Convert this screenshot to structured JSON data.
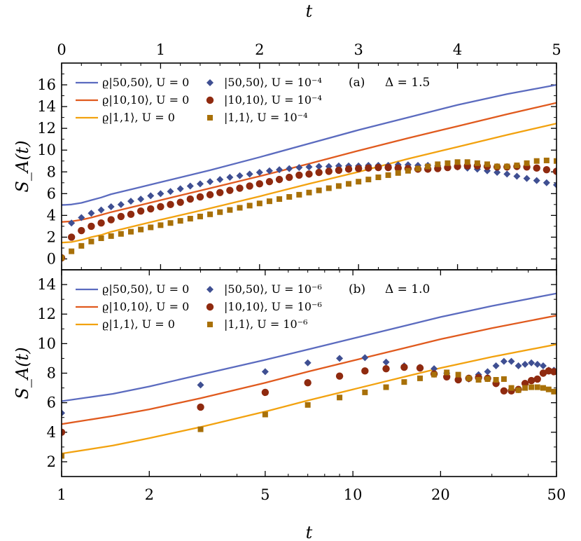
{
  "chart_data": [
    {
      "type": "line",
      "panel_label": "(a)",
      "parameter_label": "Δ = 1.5",
      "xlabel": "t",
      "ylabel": "S_A(t)",
      "xscale": "linear",
      "xlim": [
        0,
        5
      ],
      "ylim": [
        -1,
        18
      ],
      "xticks": [
        "0",
        "1",
        "2",
        "3",
        "4",
        "5"
      ],
      "yticks": [
        "0",
        "2",
        "4",
        "6",
        "8",
        "10",
        "12",
        "14",
        "16"
      ],
      "legend_position": "top-left",
      "series": [
        {
          "name": "ϱ|50,50⟩,  U = 0",
          "kind": "line",
          "color": "#5b6bbf",
          "x": [
            0,
            0.1,
            0.2,
            0.3,
            0.4,
            0.5,
            0.75,
            1,
            1.5,
            2,
            2.5,
            3,
            3.5,
            4,
            4.5,
            5
          ],
          "y": [
            4.95,
            5.0,
            5.15,
            5.4,
            5.65,
            5.95,
            6.5,
            7.05,
            8.15,
            9.35,
            10.6,
            11.85,
            13.0,
            14.15,
            15.15,
            16.0
          ]
        },
        {
          "name": "ϱ|10,10⟩,  U = 0",
          "kind": "line",
          "color": "#e05a1e",
          "x": [
            0,
            0.1,
            0.2,
            0.3,
            0.4,
            0.5,
            0.75,
            1,
            1.5,
            2,
            2.5,
            3,
            3.5,
            4,
            4.5,
            5
          ],
          "y": [
            3.4,
            3.45,
            3.6,
            3.8,
            4.05,
            4.3,
            4.85,
            5.4,
            6.5,
            7.6,
            8.75,
            9.95,
            11.1,
            12.2,
            13.3,
            14.35
          ]
        },
        {
          "name": "ϱ|1,1⟩,  U = 0",
          "kind": "line",
          "color": "#f2a20f",
          "x": [
            0,
            0.1,
            0.2,
            0.3,
            0.4,
            0.5,
            0.75,
            1,
            1.5,
            2,
            2.5,
            3,
            3.5,
            4,
            4.5,
            5
          ],
          "y": [
            1.5,
            1.55,
            1.75,
            2.0,
            2.2,
            2.5,
            3.05,
            3.6,
            4.65,
            5.75,
            6.9,
            8.0,
            9.2,
            10.3,
            11.4,
            12.45
          ]
        },
        {
          "name": "|50,50⟩,  U = 10⁻⁴",
          "kind": "marker",
          "marker": "diamond",
          "color": "#3f4f92",
          "x": [
            0.1,
            0.2,
            0.3,
            0.4,
            0.5,
            0.6,
            0.7,
            0.8,
            0.9,
            1.0,
            1.1,
            1.2,
            1.3,
            1.4,
            1.5,
            1.6,
            1.7,
            1.8,
            1.9,
            2.0,
            2.1,
            2.2,
            2.3,
            2.4,
            2.5,
            2.6,
            2.7,
            2.8,
            2.9,
            3.0,
            3.1,
            3.2,
            3.3,
            3.4,
            3.5,
            3.6,
            3.7,
            3.8,
            3.9,
            4.0,
            4.1,
            4.2,
            4.3,
            4.4,
            4.5,
            4.6,
            4.7,
            4.8,
            4.9,
            5.0
          ],
          "y": [
            3.3,
            3.8,
            4.2,
            4.5,
            4.8,
            5.0,
            5.3,
            5.5,
            5.8,
            6.0,
            6.2,
            6.45,
            6.7,
            6.9,
            7.1,
            7.3,
            7.5,
            7.65,
            7.8,
            7.95,
            8.1,
            8.2,
            8.3,
            8.4,
            8.45,
            8.5,
            8.5,
            8.55,
            8.55,
            8.55,
            8.6,
            8.6,
            8.6,
            8.65,
            8.65,
            8.6,
            8.6,
            8.55,
            8.5,
            8.45,
            8.35,
            8.25,
            8.1,
            7.95,
            7.8,
            7.6,
            7.4,
            7.2,
            7.0,
            6.8
          ]
        },
        {
          "name": "|10,10⟩,  U = 10⁻⁴",
          "kind": "marker",
          "marker": "circle",
          "color": "#8f2a0f",
          "x": [
            0,
            0.1,
            0.2,
            0.3,
            0.4,
            0.5,
            0.6,
            0.7,
            0.8,
            0.9,
            1.0,
            1.1,
            1.2,
            1.3,
            1.4,
            1.5,
            1.6,
            1.7,
            1.8,
            1.9,
            2.0,
            2.1,
            2.2,
            2.3,
            2.4,
            2.5,
            2.6,
            2.7,
            2.8,
            2.9,
            3.0,
            3.1,
            3.2,
            3.3,
            3.4,
            3.5,
            3.6,
            3.7,
            3.8,
            3.9,
            4.0,
            4.1,
            4.2,
            4.3,
            4.4,
            4.5,
            4.6,
            4.7,
            4.8,
            4.9,
            5.0
          ],
          "y": [
            0.1,
            2.0,
            2.6,
            3.0,
            3.3,
            3.6,
            3.9,
            4.1,
            4.4,
            4.6,
            4.8,
            5.0,
            5.2,
            5.5,
            5.7,
            5.9,
            6.1,
            6.3,
            6.5,
            6.7,
            6.9,
            7.1,
            7.3,
            7.5,
            7.7,
            7.8,
            7.95,
            8.05,
            8.15,
            8.25,
            8.3,
            8.35,
            8.4,
            8.4,
            8.35,
            8.3,
            8.25,
            8.25,
            8.3,
            8.4,
            8.5,
            8.55,
            8.55,
            8.5,
            8.45,
            8.45,
            8.5,
            8.45,
            8.35,
            8.2,
            8.05
          ]
        },
        {
          "name": "|1,1⟩,  U = 10⁻⁴",
          "kind": "marker",
          "marker": "square",
          "color": "#a87008",
          "x": [
            0,
            0.1,
            0.2,
            0.3,
            0.4,
            0.5,
            0.6,
            0.7,
            0.8,
            0.9,
            1.0,
            1.1,
            1.2,
            1.3,
            1.4,
            1.5,
            1.6,
            1.7,
            1.8,
            1.9,
            2.0,
            2.1,
            2.2,
            2.3,
            2.4,
            2.5,
            2.6,
            2.7,
            2.8,
            2.9,
            3.0,
            3.1,
            3.2,
            3.3,
            3.4,
            3.5,
            3.6,
            3.7,
            3.8,
            3.9,
            4.0,
            4.1,
            4.2,
            4.3,
            4.4,
            4.5,
            4.6,
            4.7,
            4.8,
            4.9,
            5.0
          ],
          "y": [
            0.1,
            0.7,
            1.2,
            1.6,
            1.9,
            2.1,
            2.3,
            2.5,
            2.7,
            2.9,
            3.1,
            3.3,
            3.5,
            3.7,
            3.9,
            4.1,
            4.3,
            4.5,
            4.7,
            4.9,
            5.1,
            5.3,
            5.5,
            5.7,
            5.9,
            6.1,
            6.3,
            6.5,
            6.7,
            6.9,
            7.1,
            7.3,
            7.5,
            7.7,
            7.9,
            8.1,
            8.3,
            8.5,
            8.7,
            8.8,
            8.9,
            8.9,
            8.8,
            8.7,
            8.5,
            8.5,
            8.6,
            8.8,
            9.0,
            9.05,
            9.0
          ]
        }
      ]
    },
    {
      "type": "line",
      "panel_label": "(b)",
      "parameter_label": "Δ = 1.0",
      "xlabel": "t",
      "ylabel": "S_A(t)",
      "xscale": "log",
      "xlim": [
        1,
        50
      ],
      "ylim": [
        1,
        15
      ],
      "xticks": [
        1,
        2,
        5,
        10,
        20,
        50
      ],
      "yticks": [
        "2",
        "4",
        "6",
        "8",
        "10",
        "12",
        "14"
      ],
      "legend_position": "top-left",
      "series": [
        {
          "name": "ϱ|50,50⟩,  U = 0",
          "kind": "line",
          "color": "#5b6bbf",
          "x": [
            1,
            1.5,
            2,
            3,
            5,
            7,
            10,
            15,
            20,
            30,
            50
          ],
          "y": [
            6.1,
            6.6,
            7.1,
            7.9,
            8.9,
            9.6,
            10.35,
            11.2,
            11.8,
            12.55,
            13.4
          ]
        },
        {
          "name": "ϱ|10,10⟩,  U = 0",
          "kind": "line",
          "color": "#e05a1e",
          "x": [
            1,
            1.5,
            2,
            3,
            5,
            7,
            10,
            15,
            20,
            30,
            50
          ],
          "y": [
            4.55,
            5.1,
            5.55,
            6.3,
            7.35,
            8.1,
            8.85,
            9.7,
            10.3,
            11.05,
            11.9
          ]
        },
        {
          "name": "ϱ|1,1⟩,  U = 0",
          "kind": "line",
          "color": "#f2a20f",
          "x": [
            1,
            1.5,
            2,
            3,
            5,
            7,
            10,
            15,
            20,
            30,
            50
          ],
          "y": [
            2.55,
            3.1,
            3.6,
            4.35,
            5.4,
            6.15,
            6.9,
            7.75,
            8.35,
            9.1,
            9.95
          ]
        },
        {
          "name": "|50,50⟩,  U = 10⁻⁶",
          "kind": "marker",
          "marker": "diamond",
          "color": "#3f4f92",
          "x": [
            1,
            3,
            5,
            7,
            9,
            11,
            13,
            15,
            17,
            19,
            21,
            23,
            25,
            27,
            29,
            31,
            33,
            35,
            37,
            39,
            41,
            43,
            45,
            47,
            49
          ],
          "y": [
            5.3,
            7.2,
            8.1,
            8.7,
            9.0,
            9.05,
            8.75,
            8.5,
            8.4,
            8.3,
            8.0,
            7.6,
            7.6,
            7.9,
            8.1,
            8.5,
            8.8,
            8.8,
            8.5,
            8.6,
            8.7,
            8.6,
            8.5,
            8.2,
            8.2
          ]
        },
        {
          "name": "|10,10⟩,  U = 10⁻⁶",
          "kind": "marker",
          "marker": "circle",
          "color": "#8f2a0f",
          "x": [
            1,
            3,
            5,
            7,
            9,
            11,
            13,
            15,
            17,
            19,
            21,
            23,
            25,
            27,
            29,
            31,
            33,
            35,
            37,
            39,
            41,
            43,
            45,
            47,
            49
          ],
          "y": [
            4.0,
            5.7,
            6.7,
            7.35,
            7.8,
            8.15,
            8.3,
            8.4,
            8.35,
            7.95,
            7.75,
            7.55,
            7.65,
            7.7,
            7.65,
            7.3,
            6.8,
            6.8,
            6.9,
            7.3,
            7.5,
            7.6,
            8.0,
            8.15,
            8.1
          ]
        },
        {
          "name": "|1,1⟩,  U = 10⁻⁶",
          "kind": "marker",
          "marker": "square",
          "color": "#a87008",
          "x": [
            1,
            3,
            5,
            7,
            9,
            11,
            13,
            15,
            17,
            19,
            21,
            23,
            25,
            27,
            29,
            31,
            33,
            35,
            37,
            39,
            41,
            43,
            45,
            47,
            49
          ],
          "y": [
            2.4,
            4.2,
            5.2,
            5.85,
            6.35,
            6.7,
            7.05,
            7.4,
            7.65,
            7.9,
            8.05,
            7.9,
            7.65,
            7.55,
            7.6,
            7.55,
            7.6,
            7.0,
            6.85,
            7.0,
            7.05,
            7.05,
            7.0,
            6.9,
            6.75
          ]
        }
      ]
    }
  ]
}
